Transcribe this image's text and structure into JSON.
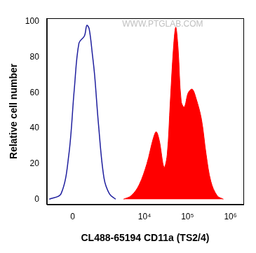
{
  "chart_data": {
    "type": "line",
    "x_label": "CL488-65194 CD11a (TS2/4)",
    "y_label": "Relative cell number",
    "annotations": [
      "WWW.PTGLAB.COM"
    ],
    "xlim": [
      -800,
      2000000
    ],
    "xticks": [
      0,
      {
        "value": 10000,
        "label": "10⁴"
      },
      {
        "value": 100000,
        "label": "10⁵"
      },
      {
        "value": 1000000,
        "label": "10⁶"
      }
    ],
    "ylim": [
      -3,
      102
    ],
    "yticks": [
      0,
      20,
      40,
      60,
      80,
      100
    ],
    "grid": false,
    "series": [
      {
        "type": "line",
        "color": "#1f1f9e",
        "x": [
          -689,
          -286,
          -90,
          36,
          146,
          286,
          354,
          427,
          535,
          624,
          797,
          1100,
          1499,
          2114
        ],
        "values": [
          0,
          3,
          25,
          62,
          88,
          92,
          98,
          96,
          82,
          70,
          42,
          12,
          3,
          0
        ]
      },
      {
        "type": "area",
        "color": "#ff0000",
        "x": [
          3230,
          4910,
          7460,
          11340,
          15850,
          18750,
          22150,
          28500,
          33700,
          39800,
          47100,
          53400,
          60500,
          71600,
          84600,
          104000,
          129000,
          158000,
          212000,
          273000,
          351000,
          490000,
          686000
        ],
        "values": [
          0,
          2,
          8,
          20,
          34,
          38,
          33,
          18,
          25,
          55,
          85,
          97,
          85,
          55,
          52,
          60,
          62,
          57,
          45,
          25,
          10,
          2,
          0
        ]
      }
    ]
  }
}
